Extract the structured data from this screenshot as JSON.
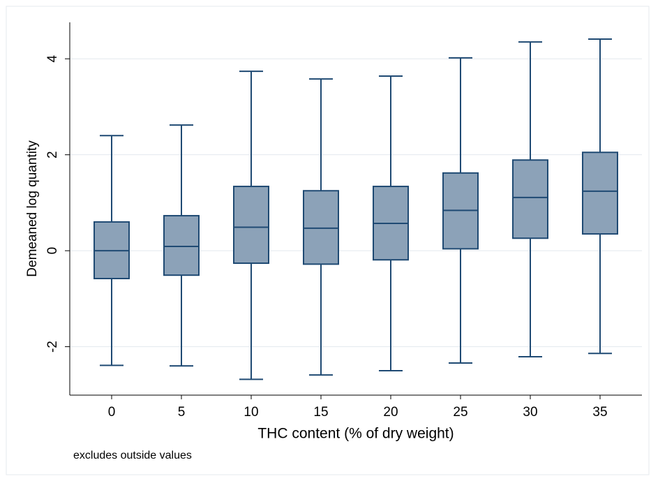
{
  "chart_data": {
    "type": "box",
    "categories": [
      "0",
      "5",
      "10",
      "15",
      "20",
      "25",
      "30",
      "35"
    ],
    "whisker_low": [
      -2.39,
      -2.4,
      -2.68,
      -2.59,
      -2.5,
      -2.34,
      -2.21,
      -2.14
    ],
    "q1": [
      -0.58,
      -0.51,
      -0.26,
      -0.28,
      -0.19,
      0.04,
      0.26,
      0.35
    ],
    "median": [
      0,
      0.09,
      0.49,
      0.47,
      0.57,
      0.84,
      1.11,
      1.24
    ],
    "q3": [
      0.6,
      0.73,
      1.34,
      1.25,
      1.34,
      1.62,
      1.89,
      2.05
    ],
    "whisker_high": [
      2.4,
      2.62,
      3.74,
      3.58,
      3.64,
      4.02,
      4.35,
      4.41
    ],
    "color": "#8ca2b8",
    "edge_color": "#1f4a73",
    "ylim": [
      -3.01,
      4.76
    ],
    "yticks": [
      -2,
      0,
      2,
      4
    ],
    "grid": true,
    "x_label": "THC content (% of dry weight)",
    "y_label": "Demeaned log quantity",
    "note": "excludes outside values"
  }
}
